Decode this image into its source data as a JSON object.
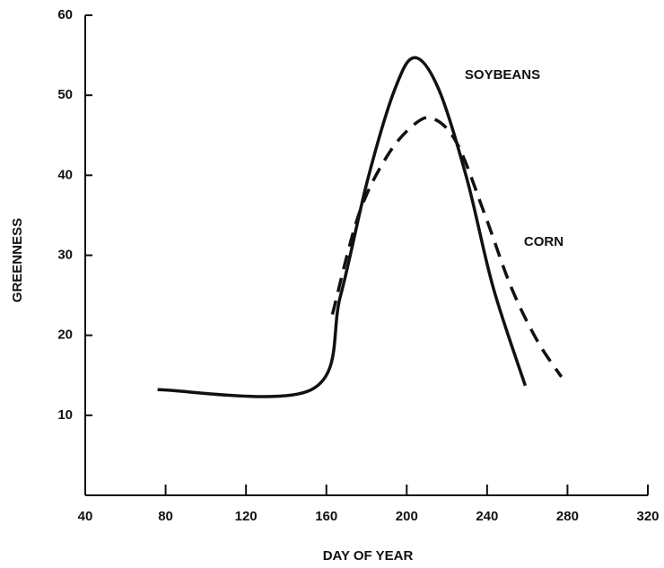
{
  "chart_data": {
    "type": "line",
    "x_label": "DAY OF YEAR",
    "y_label": "GREENNESS",
    "xlim": [
      40,
      320
    ],
    "xticks": [
      40,
      80,
      120,
      160,
      200,
      240,
      280,
      320
    ],
    "ylim": [
      0,
      60
    ],
    "yticks": [
      10,
      20,
      30,
      40,
      50,
      60
    ],
    "grid": false,
    "series": [
      {
        "name": "SOYBEANS",
        "color": "#111111",
        "line_style": "solid",
        "x": [
          76,
          152.5,
          167,
          180.6,
          194,
          204,
          216,
          230,
          243,
          259
        ],
        "values": [
          13.2,
          13.2,
          24.9,
          39.5,
          50.7,
          54.7,
          50.7,
          39.5,
          26,
          13.7
        ]
      },
      {
        "name": "CORN",
        "color": "#111111",
        "line_style": "dashed",
        "x": [
          163,
          176,
          190,
          203,
          213,
          225,
          239,
          252,
          265,
          277
        ],
        "values": [
          22.6,
          35,
          42.3,
          46.2,
          47.1,
          44,
          35,
          26,
          19.3,
          14.8
        ]
      }
    ]
  }
}
